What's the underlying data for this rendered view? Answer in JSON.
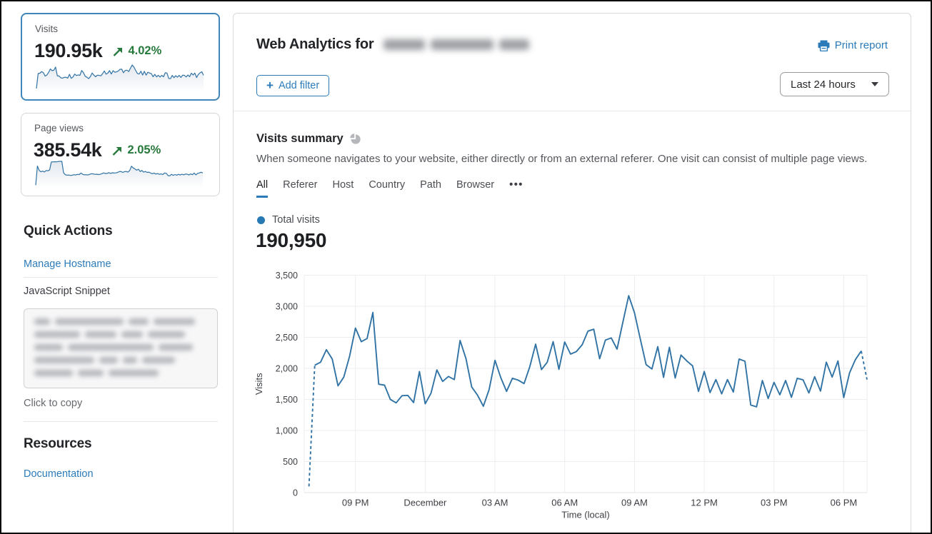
{
  "sidebar": {
    "metric_cards": [
      {
        "label": "Visits",
        "value": "190.95k",
        "change": "4.02%",
        "direction": "up",
        "selected": true
      },
      {
        "label": "Page views",
        "value": "385.54k",
        "change": "2.05%",
        "direction": "up",
        "selected": false
      }
    ],
    "quick_actions": {
      "title": "Quick Actions",
      "manage_hostname_label": "Manage Hostname",
      "snippet_label": "JavaScript Snippet",
      "snippet_hint": "Click to copy"
    },
    "resources": {
      "title": "Resources",
      "documentation_label": "Documentation"
    }
  },
  "header": {
    "title": "Web Analytics for",
    "print_label": "Print report",
    "add_filter_label": "Add filter",
    "plus_glyph": "+",
    "time_range_value": "Last 24 hours"
  },
  "summary": {
    "title": "Visits summary",
    "description": "When someone navigates to your website, either directly or from an external referer. One visit can consist of multiple page views.",
    "tabs": [
      "All",
      "Referer",
      "Host",
      "Country",
      "Path",
      "Browser"
    ],
    "active_tab": "All",
    "more_tabs_glyph": "•••",
    "legend_label": "Total visits",
    "total_value": "190,950"
  },
  "colors": {
    "accent_blue": "#2c7bb9",
    "chart_line": "#3173a4",
    "selected_card_border": "#4186b8",
    "positive_green": "#27793c",
    "gridline": "#ededf0",
    "axis_text": "#3d3f44"
  },
  "chart_data": [
    {
      "name": "visits-over-time",
      "type": "line",
      "title": "Total visits",
      "xlabel": "Time (local)",
      "ylabel": "Visits",
      "ylim": [
        0,
        3500
      ],
      "y_ticks": [
        0,
        500,
        1000,
        1500,
        2000,
        2500,
        3000,
        3500
      ],
      "y_tick_labels": [
        "0",
        "500",
        "1,000",
        "1,500",
        "2,000",
        "2,500",
        "3,000",
        "3,500"
      ],
      "x_ticks": [
        {
          "label": "09 PM",
          "index": 8
        },
        {
          "label": "December",
          "index": 20
        },
        {
          "label": "03 AM",
          "index": 32
        },
        {
          "label": "06 AM",
          "index": 44
        },
        {
          "label": "09 AM",
          "index": 56
        },
        {
          "label": "12 PM",
          "index": 68
        },
        {
          "label": "03 PM",
          "index": 80
        },
        {
          "label": "06 PM",
          "index": 92
        }
      ],
      "dashed_first_segments": 1,
      "dashed_last_segments": 1,
      "grid": true,
      "legend_position": "top-left",
      "values": [
        100,
        2050,
        2100,
        2300,
        2150,
        1720,
        1860,
        2200,
        2650,
        2430,
        2480,
        2900,
        1745,
        1730,
        1500,
        1445,
        1560,
        1565,
        1450,
        1950,
        1430,
        1600,
        1975,
        1790,
        1870,
        1820,
        2450,
        2160,
        1700,
        1570,
        1390,
        1660,
        2130,
        1850,
        1630,
        1840,
        1810,
        1755,
        2030,
        2390,
        1980,
        2100,
        2430,
        1985,
        2425,
        2230,
        2270,
        2380,
        2600,
        2630,
        2155,
        2455,
        2490,
        2310,
        2740,
        3170,
        2895,
        2470,
        2060,
        1990,
        2350,
        1855,
        2340,
        1845,
        2215,
        2120,
        2040,
        1630,
        1950,
        1610,
        1820,
        1590,
        1820,
        1620,
        2150,
        2115,
        1410,
        1380,
        1805,
        1515,
        1775,
        1575,
        1805,
        1535,
        1840,
        1815,
        1605,
        1865,
        1635,
        2100,
        1860,
        2120,
        1530,
        1930,
        2140,
        2280,
        1820
      ]
    },
    {
      "name": "visits-sparkline",
      "type": "line",
      "title": "Visits (24h sparkline)",
      "source": "visits-over-time"
    },
    {
      "name": "pageviews-sparkline",
      "type": "line",
      "title": "Page views (24h sparkline)",
      "values": [
        150,
        6100,
        4700,
        4300,
        4500,
        4250,
        4700,
        4600,
        4900,
        7350,
        7400,
        7450,
        7400,
        7500,
        7550,
        7550,
        4000,
        3400,
        3250,
        3300,
        3150,
        3250,
        3400,
        3300,
        3500,
        3450,
        3900,
        3500,
        3350,
        3400,
        3300,
        3500,
        3700,
        3650,
        3500,
        3550,
        3450,
        3500,
        3700,
        3950,
        3750,
        3800,
        4050,
        3800,
        4000,
        3900,
        3950,
        4100,
        4350,
        4400,
        4100,
        4350,
        4400,
        4200,
        4700,
        6050,
        5500,
        5200,
        4800,
        5100,
        4400,
        4700,
        4200,
        4400,
        4100,
        4200,
        3900,
        3700,
        3900,
        3600,
        3750,
        3500,
        3650,
        3450,
        3900,
        3850,
        3100,
        3050,
        3500,
        3200,
        3450,
        3250,
        3500,
        3300,
        3550,
        3350,
        3600,
        3550,
        3300,
        3650,
        3400,
        3900,
        3350,
        3800,
        3950,
        4150,
        3950
      ]
    }
  ]
}
